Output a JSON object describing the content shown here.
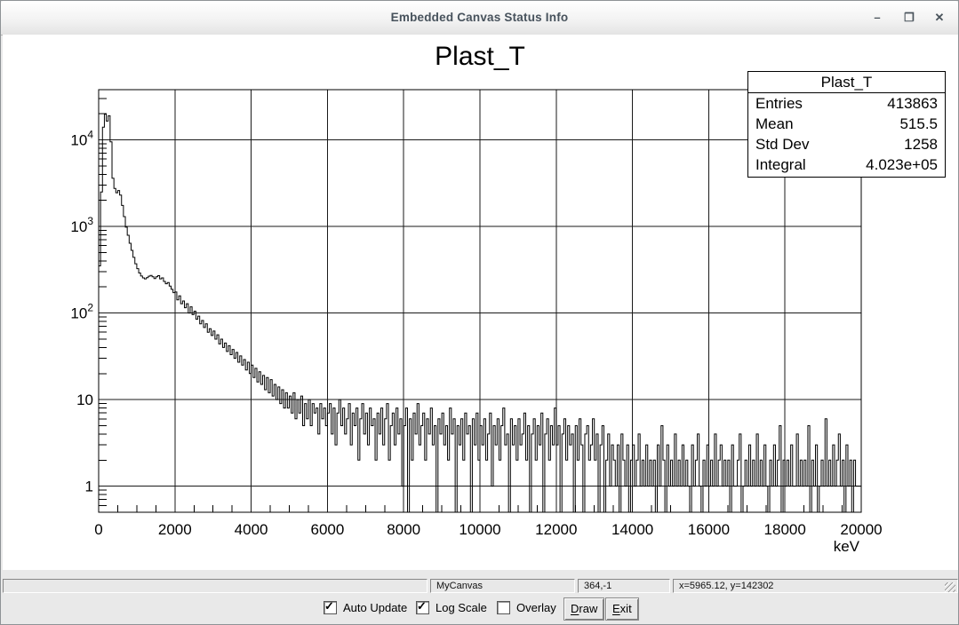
{
  "window": {
    "title": "Embedded Canvas Status Info",
    "controls": {
      "minimize": "–",
      "maximize": "❐",
      "close": "✕"
    }
  },
  "chart_data": {
    "type": "bar",
    "title": "Plast_T",
    "xlabel": "keV",
    "ylabel": "",
    "yscale": "log",
    "grid": true,
    "xlim": [
      0,
      20000
    ],
    "ylim": [
      0.5,
      38000
    ],
    "x_major_ticks": [
      0,
      2000,
      4000,
      6000,
      8000,
      10000,
      12000,
      14000,
      16000,
      18000,
      20000
    ],
    "x_minor_step": 500,
    "y_major_ticks": [
      1,
      10,
      100,
      1000,
      10000
    ],
    "bin_width": 50,
    "x_start": 0,
    "values": [
      350,
      2500,
      14000,
      19800,
      16500,
      19000,
      9500,
      3600,
      2750,
      2450,
      2600,
      2300,
      1750,
      1300,
      980,
      790,
      640,
      530,
      440,
      370,
      325,
      290,
      268,
      255,
      248,
      256,
      266,
      272,
      262,
      250,
      262,
      270,
      248,
      255,
      232,
      218,
      225,
      205,
      188,
      172,
      175,
      142,
      158,
      128,
      138,
      115,
      128,
      100,
      118,
      96,
      105,
      85,
      92,
      75,
      82,
      68,
      75,
      60,
      66,
      55,
      62,
      50,
      56,
      44,
      50,
      40,
      45,
      36,
      42,
      33,
      38,
      30,
      35,
      27,
      32,
      25,
      29,
      22,
      27,
      20,
      25,
      18,
      23,
      16,
      21,
      15,
      19,
      13,
      18,
      12,
      17,
      11,
      15,
      10,
      14,
      9,
      13,
      8,
      12,
      8,
      11,
      7,
      12,
      6,
      10,
      7,
      11,
      5,
      9,
      6,
      10,
      5,
      9,
      7,
      8,
      4,
      9,
      6,
      8,
      5,
      7,
      9,
      4,
      8,
      3,
      7,
      10,
      5,
      8,
      4,
      6,
      9,
      3,
      7,
      5,
      8,
      2,
      6,
      9,
      4,
      7,
      3,
      8,
      5,
      6,
      2,
      7,
      4,
      8,
      3,
      6,
      9,
      2,
      5,
      7,
      3,
      8,
      4,
      6,
      1,
      5,
      8,
      0,
      6,
      2,
      7,
      4,
      9,
      3,
      5,
      7,
      2,
      6,
      4,
      8,
      3,
      5,
      0,
      6,
      4,
      7,
      3,
      5,
      2,
      8,
      4,
      6,
      0,
      5,
      3,
      6,
      2,
      7,
      4,
      5,
      0,
      6,
      3,
      7,
      2,
      5,
      3,
      6,
      2,
      4,
      7,
      1,
      5,
      3,
      6,
      2,
      5,
      8,
      3,
      4,
      0,
      6,
      3,
      5,
      2,
      6,
      3,
      4,
      7,
      2,
      5,
      0,
      4,
      6,
      2,
      5,
      3,
      7,
      0,
      4,
      6,
      2,
      5,
      3,
      8,
      3,
      5,
      0,
      4,
      6,
      2,
      5,
      3,
      4,
      0,
      5,
      2,
      6,
      3,
      0,
      4,
      5,
      2,
      3,
      6,
      2,
      4,
      0,
      3,
      5,
      0,
      2,
      4,
      1,
      3,
      2,
      1,
      3,
      0,
      4,
      2,
      1,
      3,
      0,
      2,
      3,
      1,
      2,
      4,
      1,
      2,
      1,
      3,
      1,
      2,
      1,
      2,
      0,
      3,
      1,
      5,
      2,
      0,
      3,
      1,
      2,
      1,
      4,
      1,
      2,
      1,
      3,
      1,
      2,
      1,
      0,
      3,
      1,
      2,
      4,
      1,
      0,
      2,
      1,
      3,
      1,
      2,
      1,
      4,
      1,
      2,
      3,
      1,
      2,
      1,
      2,
      0,
      3,
      1,
      1,
      2,
      4,
      0,
      1,
      2,
      1,
      3,
      1,
      2,
      1,
      4,
      1,
      2,
      1,
      3,
      1,
      0,
      2,
      1,
      3,
      1,
      2,
      5,
      0,
      2,
      1,
      2,
      1,
      3,
      1,
      1,
      4,
      1,
      2,
      1,
      2,
      1,
      5,
      0,
      2,
      1,
      3,
      0,
      1,
      2,
      1,
      6,
      1,
      2,
      1,
      3,
      1,
      2,
      4,
      1,
      2,
      0,
      3,
      1,
      2,
      0,
      2,
      1,
      1,
      1
    ]
  },
  "stats_box": {
    "title": "Plast_T",
    "rows": [
      {
        "label": "Entries",
        "value": "413863"
      },
      {
        "label": "Mean",
        "value": "515.5"
      },
      {
        "label": "Std Dev",
        "value": "1258"
      },
      {
        "label": "Integral",
        "value": "4.023e+05"
      }
    ]
  },
  "status_bar": {
    "sections": [
      {
        "text": ""
      },
      {
        "text": "MyCanvas"
      },
      {
        "text": "364,-1"
      },
      {
        "text": "x=5965.12, y=142302"
      }
    ]
  },
  "controls": {
    "checkboxes": [
      {
        "label": "Auto Update",
        "checked": true
      },
      {
        "label": "Log Scale",
        "checked": true
      },
      {
        "label": "Overlay",
        "checked": false
      }
    ],
    "buttons": [
      {
        "label": "Draw",
        "mnemonic": "D"
      },
      {
        "label": "Exit",
        "mnemonic": "E"
      }
    ],
    "check_glyph": "✓"
  },
  "colors": {
    "line": "#000000",
    "grid": "#1a1a1a",
    "canvas_bg": "#ffffff",
    "window_bg": "#e9e9e9",
    "title_text": "#47525c"
  }
}
